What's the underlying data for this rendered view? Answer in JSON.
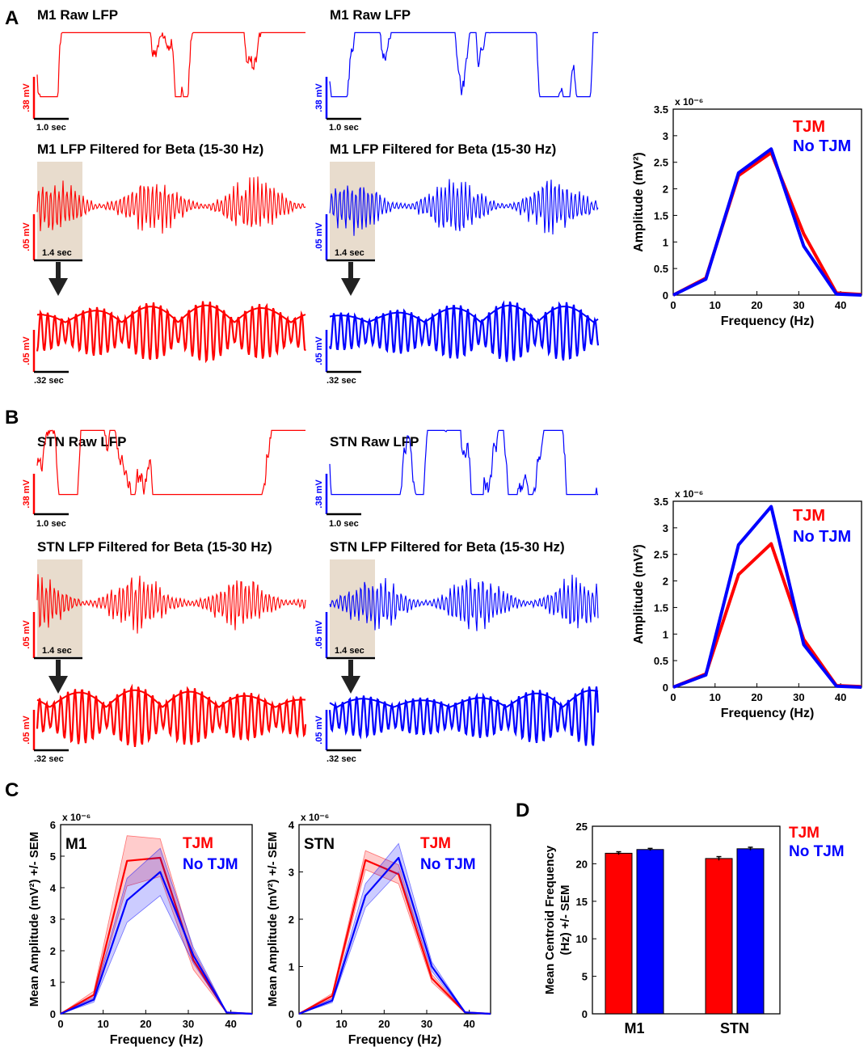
{
  "panel_letters": {
    "a": "A",
    "b": "B",
    "c": "C",
    "d": "D"
  },
  "colors": {
    "tjm": "#ff0000",
    "no_tjm": "#0000ff",
    "highlight": "#e8dccd",
    "arrow": "#222222",
    "axis": "#000000"
  },
  "traces": {
    "a_red": {
      "raw_title": "M1 Raw LFP",
      "filt_title": "M1 LFP Filtered for Beta (15-30 Hz)",
      "raw_scale": ".38 mV",
      "raw_time": "1.0 sec",
      "filt_scale": ".05 mV",
      "filt_time": "1.4 sec",
      "zoom_scale": ".05 mV",
      "zoom_time": ".32 sec"
    },
    "a_blue": {
      "raw_title": "M1 Raw LFP",
      "filt_title": "M1 LFP Filtered for Beta (15-30 Hz)",
      "raw_scale": ".38 mV",
      "raw_time": "1.0 sec",
      "filt_scale": ".05 mV",
      "filt_time": "1.4 sec",
      "zoom_scale": ".05 mV",
      "zoom_time": ".32 sec"
    },
    "b_red": {
      "raw_title": "STN Raw LFP",
      "filt_title": "STN LFP Filtered for Beta (15-30 Hz)",
      "raw_scale": ".38 mV",
      "raw_time": "1.0 sec",
      "filt_scale": ".05 mV",
      "filt_time": "1.4 sec",
      "zoom_scale": ".05 mV",
      "zoom_time": ".32 sec"
    },
    "b_blue": {
      "raw_title": "STN Raw LFP",
      "filt_title": "STN LFP Filtered for Beta (15-30 Hz)",
      "raw_scale": ".38 mV",
      "raw_time": "1.0 sec",
      "filt_scale": ".05 mV",
      "filt_time": "1.4 sec",
      "zoom_scale": ".05 mV",
      "zoom_time": ".32 sec"
    }
  },
  "chart_data": [
    {
      "id": "A_spectrum",
      "type": "line",
      "xlabel": "Frequency (Hz)",
      "ylabel": "Amplitude (mV²)",
      "y_multiplier": "x 10⁻⁶",
      "xlim": [
        0,
        45
      ],
      "ylim": [
        0,
        3.5
      ],
      "xticks": [
        0,
        10,
        20,
        30,
        40
      ],
      "yticks": [
        0,
        0.5,
        1,
        1.5,
        2,
        2.5,
        3,
        3.5
      ],
      "xtick_labels": [
        "0",
        "10",
        "20",
        "30",
        "40"
      ],
      "ytick_labels": [
        "0",
        "0.5",
        "1",
        "1.5",
        "2",
        "2.5",
        "3",
        "3.5"
      ],
      "legend": [
        "TJM",
        "No TJM"
      ],
      "x": [
        0,
        7.8,
        15.6,
        23.4,
        31.2,
        39,
        45
      ],
      "series": [
        {
          "name": "TJM",
          "values": [
            0,
            0.32,
            2.25,
            2.68,
            1.15,
            0.04,
            0.01
          ]
        },
        {
          "name": "No TJM",
          "values": [
            0,
            0.3,
            2.3,
            2.75,
            0.92,
            0.02,
            0.0
          ]
        }
      ]
    },
    {
      "id": "B_spectrum",
      "type": "line",
      "xlabel": "Frequency (Hz)",
      "ylabel": "Amplitude (mV²)",
      "y_multiplier": "x 10⁻⁶",
      "xlim": [
        0,
        45
      ],
      "ylim": [
        0,
        3.5
      ],
      "xticks": [
        0,
        10,
        20,
        30,
        40
      ],
      "yticks": [
        0,
        0.5,
        1,
        1.5,
        2,
        2.5,
        3,
        3.5
      ],
      "xtick_labels": [
        "0",
        "10",
        "20",
        "30",
        "40"
      ],
      "ytick_labels": [
        "0",
        "0.5",
        "1",
        "1.5",
        "2",
        "2.5",
        "3",
        "3.5"
      ],
      "legend": [
        "TJM",
        "No TJM"
      ],
      "x": [
        0,
        7.8,
        15.6,
        23.4,
        31.2,
        39,
        45
      ],
      "series": [
        {
          "name": "TJM",
          "values": [
            0,
            0.25,
            2.12,
            2.7,
            0.9,
            0.03,
            0.01
          ]
        },
        {
          "name": "No TJM",
          "values": [
            0,
            0.23,
            2.68,
            3.4,
            0.8,
            0.02,
            0.0
          ]
        }
      ]
    },
    {
      "id": "C_M1",
      "type": "area",
      "title": "M1",
      "xlabel": "Frequency (Hz)",
      "ylabel": "Mean Amplitude (mV²) +/- SEM",
      "y_multiplier": "x 10⁻⁶",
      "xlim": [
        0,
        45
      ],
      "ylim": [
        0,
        6
      ],
      "xticks": [
        0,
        10,
        20,
        30,
        40
      ],
      "yticks": [
        0,
        1,
        2,
        3,
        4,
        5,
        6
      ],
      "xtick_labels": [
        "0",
        "10",
        "20",
        "30",
        "40"
      ],
      "ytick_labels": [
        "0",
        "1",
        "2",
        "3",
        "4",
        "5",
        "6"
      ],
      "legend": [
        "TJM",
        "No TJM"
      ],
      "x": [
        0,
        7.8,
        15.6,
        23.4,
        31.2,
        39,
        45
      ],
      "series": [
        {
          "name": "TJM",
          "values": [
            0,
            0.6,
            4.85,
            4.95,
            1.7,
            0.04,
            0.0
          ],
          "sem": [
            0,
            0.12,
            0.8,
            0.6,
            0.3,
            0.01,
            0.0
          ]
        },
        {
          "name": "No TJM",
          "values": [
            0,
            0.45,
            3.6,
            4.5,
            1.85,
            0.04,
            0.0
          ],
          "sem": [
            0,
            0.08,
            0.7,
            0.75,
            0.25,
            0.01,
            0.0
          ]
        }
      ]
    },
    {
      "id": "C_STN",
      "type": "area",
      "title": "STN",
      "xlabel": "Frequency (Hz)",
      "ylabel": "Mean Amplitude (mV²) +/- SEM",
      "y_multiplier": "x 10⁻⁶",
      "xlim": [
        0,
        45
      ],
      "ylim": [
        0,
        4
      ],
      "xticks": [
        0,
        10,
        20,
        30,
        40
      ],
      "yticks": [
        0,
        1,
        2,
        3,
        4
      ],
      "xtick_labels": [
        "0",
        "10",
        "20",
        "30",
        "40"
      ],
      "ytick_labels": [
        "0",
        "1",
        "2",
        "3",
        "4"
      ],
      "legend": [
        "TJM",
        "No TJM"
      ],
      "x": [
        0,
        7.8,
        15.6,
        23.4,
        31.2,
        39,
        45
      ],
      "series": [
        {
          "name": "TJM",
          "values": [
            0,
            0.38,
            3.25,
            2.95,
            0.75,
            0.03,
            0.0
          ],
          "sem": [
            0,
            0.05,
            0.2,
            0.2,
            0.08,
            0.01,
            0.0
          ]
        },
        {
          "name": "No TJM",
          "values": [
            0,
            0.28,
            2.5,
            3.3,
            1.0,
            0.03,
            0.0
          ],
          "sem": [
            0,
            0.04,
            0.25,
            0.3,
            0.1,
            0.01,
            0.0
          ]
        }
      ]
    },
    {
      "id": "D_centroid",
      "type": "bar",
      "ylabel": "Mean Centroid Frequency (Hz) +/- SEM",
      "ylim": [
        0,
        25
      ],
      "yticks": [
        0,
        5,
        10,
        15,
        20,
        25
      ],
      "ytick_labels": [
        "0",
        "5",
        "10",
        "15",
        "20",
        "25"
      ],
      "categories": [
        "M1",
        "STN"
      ],
      "legend": [
        "TJM",
        "No TJM"
      ],
      "series": [
        {
          "name": "TJM",
          "values": [
            21.4,
            20.7
          ],
          "sem": [
            0.2,
            0.25
          ]
        },
        {
          "name": "No TJM",
          "values": [
            21.9,
            22.0
          ],
          "sem": [
            0.15,
            0.2
          ]
        }
      ]
    }
  ]
}
